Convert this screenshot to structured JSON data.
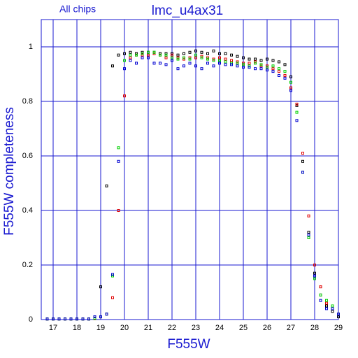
{
  "chart_data": {
    "type": "scatter",
    "title": "lmc_u4ax31",
    "subtitle": "All chips",
    "xlabel": "F555W",
    "ylabel": "F555W completeness",
    "xlim": [
      16.5,
      29
    ],
    "ylim": [
      0,
      1.1
    ],
    "xticks": [
      17,
      18,
      19,
      20,
      21,
      22,
      23,
      24,
      25,
      26,
      27,
      28,
      29
    ],
    "yticks": [
      0,
      0.2,
      0.4,
      0.6,
      0.8,
      1
    ],
    "grid": true,
    "x": [
      16.75,
      17,
      17.25,
      17.5,
      17.75,
      18,
      18.25,
      18.5,
      18.75,
      19,
      19.25,
      19.5,
      19.75,
      20,
      20.25,
      20.5,
      20.75,
      21,
      21.25,
      21.5,
      21.75,
      22,
      22.25,
      22.5,
      22.75,
      23,
      23.25,
      23.5,
      23.75,
      24,
      24.25,
      24.5,
      24.75,
      25,
      25.25,
      25.5,
      25.75,
      26,
      26.25,
      26.5,
      26.75,
      27,
      27.25,
      27.5,
      27.75,
      28,
      28.25,
      28.5,
      28.75,
      29
    ],
    "series": [
      {
        "color": "#000000",
        "values": [
          0.002,
          0.002,
          0.002,
          0.002,
          0.002,
          0.002,
          0.002,
          0.002,
          0.005,
          0.12,
          0.49,
          0.93,
          0.97,
          0.975,
          0.98,
          0.975,
          0.98,
          0.98,
          0.98,
          0.975,
          0.975,
          0.975,
          0.97,
          0.975,
          0.98,
          0.985,
          0.98,
          0.975,
          0.985,
          0.975,
          0.975,
          0.97,
          0.965,
          0.96,
          0.955,
          0.955,
          0.95,
          0.955,
          0.95,
          0.945,
          0.935,
          0.89,
          0.785,
          0.58,
          0.32,
          0.17,
          0.09,
          0.05,
          0.03,
          0.01
        ]
      },
      {
        "color": "#e00000",
        "values": [
          0.002,
          0.002,
          0.002,
          0.002,
          0.002,
          0.002,
          0.002,
          0.002,
          0.003,
          0.01,
          0.02,
          0.08,
          0.4,
          0.82,
          0.96,
          0.97,
          0.97,
          0.97,
          0.975,
          0.97,
          0.96,
          0.97,
          0.96,
          0.955,
          0.96,
          0.96,
          0.965,
          0.96,
          0.955,
          0.96,
          0.955,
          0.95,
          0.945,
          0.94,
          0.94,
          0.945,
          0.93,
          0.93,
          0.92,
          0.91,
          0.895,
          0.85,
          0.79,
          0.61,
          0.38,
          0.2,
          0.12,
          0.06,
          0.05,
          0.02
        ]
      },
      {
        "color": "#00d000",
        "values": [
          0.002,
          0.002,
          0.002,
          0.002,
          0.002,
          0.002,
          0.002,
          0.002,
          0.004,
          0.01,
          0.02,
          0.16,
          0.63,
          0.95,
          0.97,
          0.97,
          0.975,
          0.98,
          0.98,
          0.97,
          0.97,
          0.96,
          0.955,
          0.96,
          0.955,
          0.97,
          0.96,
          0.955,
          0.95,
          0.95,
          0.945,
          0.94,
          0.94,
          0.935,
          0.93,
          0.94,
          0.935,
          0.925,
          0.93,
          0.92,
          0.91,
          0.87,
          0.76,
          0.54,
          0.3,
          0.15,
          0.09,
          0.07,
          0.05,
          0.02
        ]
      },
      {
        "color": "#0000d0",
        "values": [
          0.002,
          0.002,
          0.002,
          0.002,
          0.002,
          0.002,
          0.002,
          0.002,
          0.01,
          0.01,
          0.02,
          0.165,
          0.58,
          0.92,
          0.95,
          0.94,
          0.96,
          0.96,
          0.94,
          0.94,
          0.935,
          0.95,
          0.92,
          0.93,
          0.94,
          0.93,
          0.92,
          0.94,
          0.93,
          0.94,
          0.935,
          0.935,
          0.93,
          0.925,
          0.925,
          0.92,
          0.92,
          0.915,
          0.91,
          0.895,
          0.885,
          0.84,
          0.73,
          0.54,
          0.31,
          0.16,
          0.07,
          0.04,
          0.04,
          0.02
        ]
      }
    ]
  }
}
